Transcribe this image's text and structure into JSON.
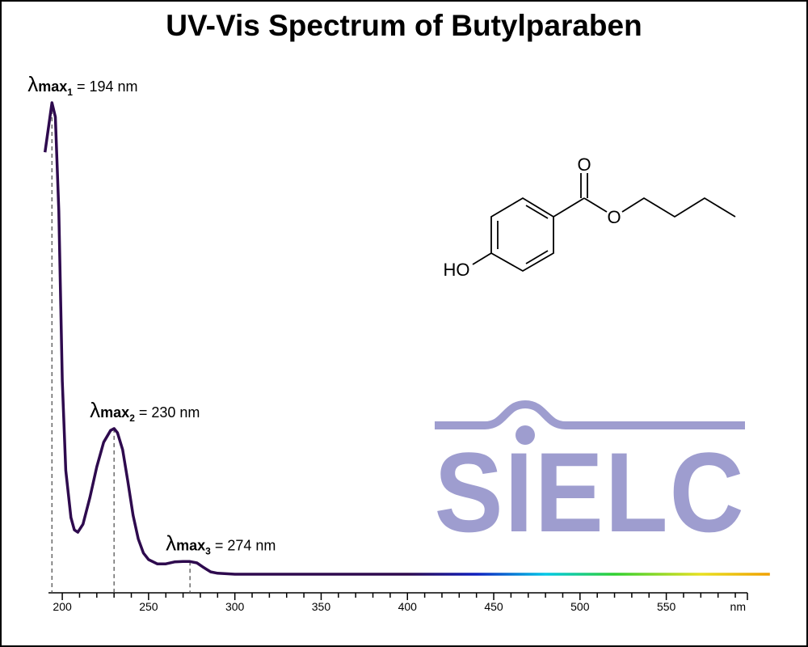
{
  "chart_data": {
    "type": "line",
    "title": "UV-Vis Spectrum of Butylparaben",
    "x": [
      190,
      194,
      196,
      198,
      200,
      202,
      205,
      207,
      209,
      212,
      216,
      220,
      224,
      228,
      230,
      232,
      235,
      238,
      241,
      244,
      247,
      250,
      255,
      260,
      265,
      270,
      274,
      278,
      282,
      286,
      290,
      300,
      400,
      500,
      610
    ],
    "series": [
      {
        "color": "#2e0a4e",
        "values": [
          0.895,
          1.0,
          0.97,
          0.77,
          0.41,
          0.22,
          0.12,
          0.094,
          0.089,
          0.106,
          0.163,
          0.228,
          0.28,
          0.305,
          0.309,
          0.3,
          0.264,
          0.197,
          0.125,
          0.075,
          0.045,
          0.031,
          0.022,
          0.022,
          0.026,
          0.027,
          0.027,
          0.024,
          0.014,
          0.005,
          0.002,
          0,
          0,
          0,
          0
        ]
      }
    ],
    "gradient": [
      {
        "at": 400,
        "color": "#2e0a4e"
      },
      {
        "at": 440,
        "color": "#1020c0"
      },
      {
        "at": 480,
        "color": "#00c8e8"
      },
      {
        "at": 520,
        "color": "#30d030"
      },
      {
        "at": 570,
        "color": "#e8e020"
      },
      {
        "at": 610,
        "color": "#f0a000"
      }
    ],
    "xlim": [
      192,
      597
    ],
    "ylim": [
      0,
      1
    ],
    "xticks": [
      200,
      250,
      300,
      350,
      400,
      450,
      500,
      550
    ],
    "xminorticks": [
      210,
      220,
      230,
      240,
      260,
      270,
      280,
      290,
      310,
      320,
      330,
      340,
      360,
      370,
      380,
      390,
      410,
      420,
      430,
      440,
      460,
      470,
      480,
      490,
      510,
      520,
      530,
      540,
      560,
      570,
      580,
      590
    ],
    "xlabel": "nm",
    "annotations": [
      {
        "symbol": "λ",
        "subscript": "max",
        "index": "1",
        "text": " = 194 nm",
        "x": 194,
        "y": 1.0
      },
      {
        "symbol": "λ",
        "subscript": "max",
        "index": "2",
        "text": " = 230 nm",
        "x": 230,
        "y": 0.309
      },
      {
        "symbol": "λ",
        "subscript": "max",
        "index": "3",
        "text": " = 274 nm",
        "x": 274,
        "y": 0.027
      }
    ],
    "structure": {
      "carbonyl_o": "O",
      "ester_o": "O",
      "hydroxyl": "HO"
    },
    "watermark": "SIELC"
  }
}
